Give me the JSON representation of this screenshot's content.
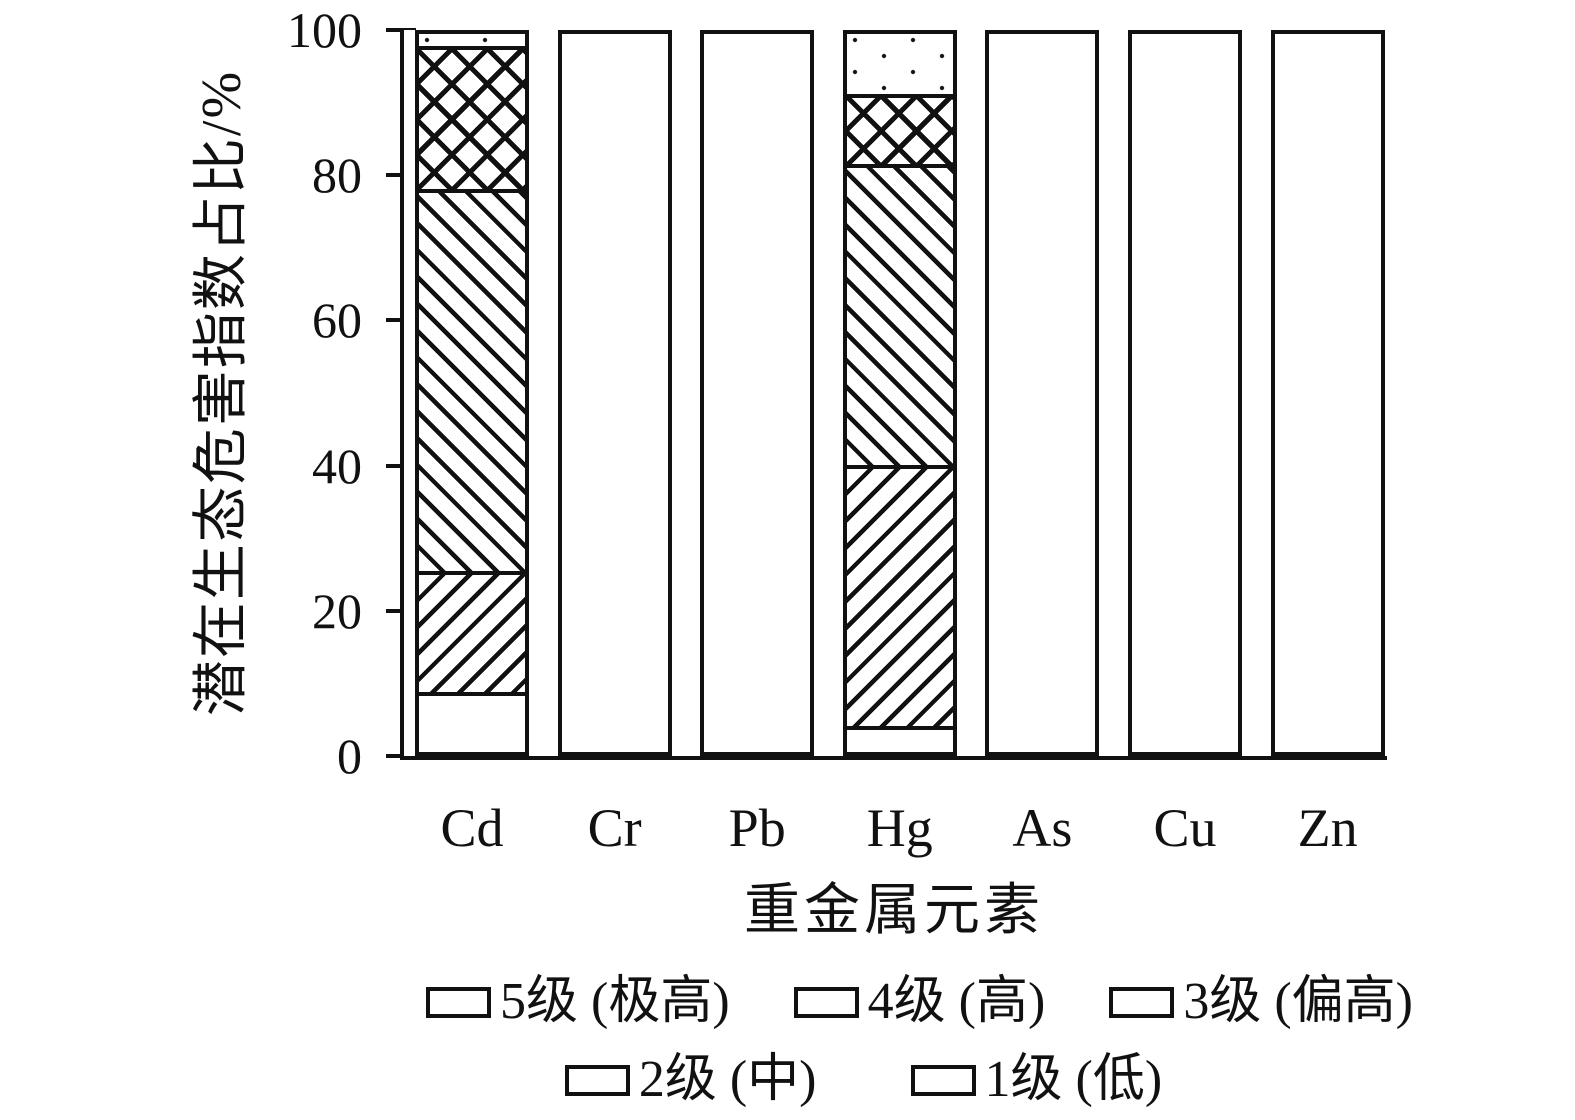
{
  "chart_data": {
    "type": "bar",
    "stacked": true,
    "orientation": "vertical",
    "title": "",
    "xlabel": "重金属元素",
    "ylabel": "潜在生态危害指数占比/%",
    "ylim": [
      0,
      100
    ],
    "yticks": [
      0,
      20,
      40,
      60,
      80,
      100
    ],
    "grid": false,
    "bar_fill": "#ffffff",
    "ink_color": "#111111",
    "background_color": "#ffffff",
    "categories": [
      "Cd",
      "Cr",
      "Pb",
      "Hg",
      "As",
      "Cu",
      "Zn"
    ],
    "series": [
      {
        "name": "1级 (低)",
        "pattern": "plain",
        "values": [
          8.4,
          100,
          100,
          3.6,
          100,
          100,
          100
        ]
      },
      {
        "name": "2级 (中)",
        "pattern": "slash",
        "values": [
          16.8,
          0,
          0,
          36.4,
          0,
          0,
          0
        ]
      },
      {
        "name": "3级 (偏高)",
        "pattern": "backslash",
        "values": [
          53.2,
          0,
          0,
          41.9,
          0,
          0,
          0
        ]
      },
      {
        "name": "4级 (高)",
        "pattern": "crosshatch",
        "values": [
          19.9,
          0,
          0,
          9.7,
          0,
          0,
          0
        ]
      },
      {
        "name": "5级 (极高)",
        "pattern": "dots",
        "values": [
          1.7,
          0,
          0,
          8.4,
          0,
          0,
          0
        ]
      }
    ],
    "legend": {
      "position": "below-chart",
      "rows": [
        [
          {
            "label": "5级 (极高)",
            "pattern": "dots"
          },
          {
            "label": "4级 (高)",
            "pattern": "crosshatch"
          },
          {
            "label": "3级 (偏高)",
            "pattern": "backslash"
          }
        ],
        [
          {
            "label": "2级 (中)",
            "pattern": "slash"
          },
          {
            "label": "1级 (低)",
            "pattern": "plain"
          }
        ]
      ]
    }
  }
}
